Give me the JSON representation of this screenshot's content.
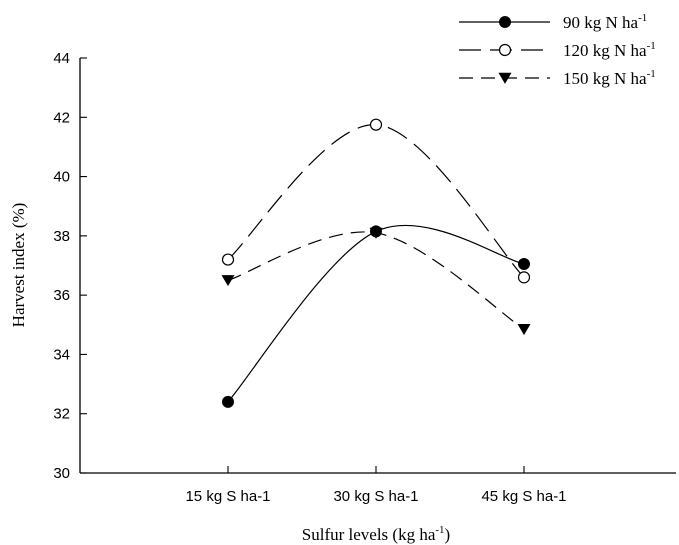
{
  "chart_data": {
    "type": "line",
    "title": "",
    "xlabel": "Sulfur levels (kg ha",
    "xlabel_sup": "-1",
    "xlabel_suffix": ")",
    "ylabel": "Harvest index (%)",
    "categories": [
      "15 kg S ha-1",
      "30 kg S ha-1",
      "45 kg S ha-1"
    ],
    "ylim": [
      30,
      44
    ],
    "yticks": [
      30,
      32,
      34,
      36,
      38,
      40,
      42,
      44
    ],
    "grid": false,
    "legend_position": "top-right",
    "series": [
      {
        "name": "90 kg N ha",
        "name_sup": "-1",
        "values": [
          32.4,
          38.15,
          37.05
        ],
        "marker": "filled-circle",
        "line": "solid",
        "color": "#000000"
      },
      {
        "name": "120 kg N ha",
        "name_sup": "-1",
        "values": [
          37.2,
          41.75,
          36.6
        ],
        "marker": "open-circle",
        "line": "long-dash",
        "color": "#000000"
      },
      {
        "name": "150 kg N ha",
        "name_sup": "-1",
        "values": [
          36.5,
          38.1,
          34.85
        ],
        "marker": "filled-triangle-down",
        "line": "dash",
        "color": "#000000"
      }
    ]
  }
}
